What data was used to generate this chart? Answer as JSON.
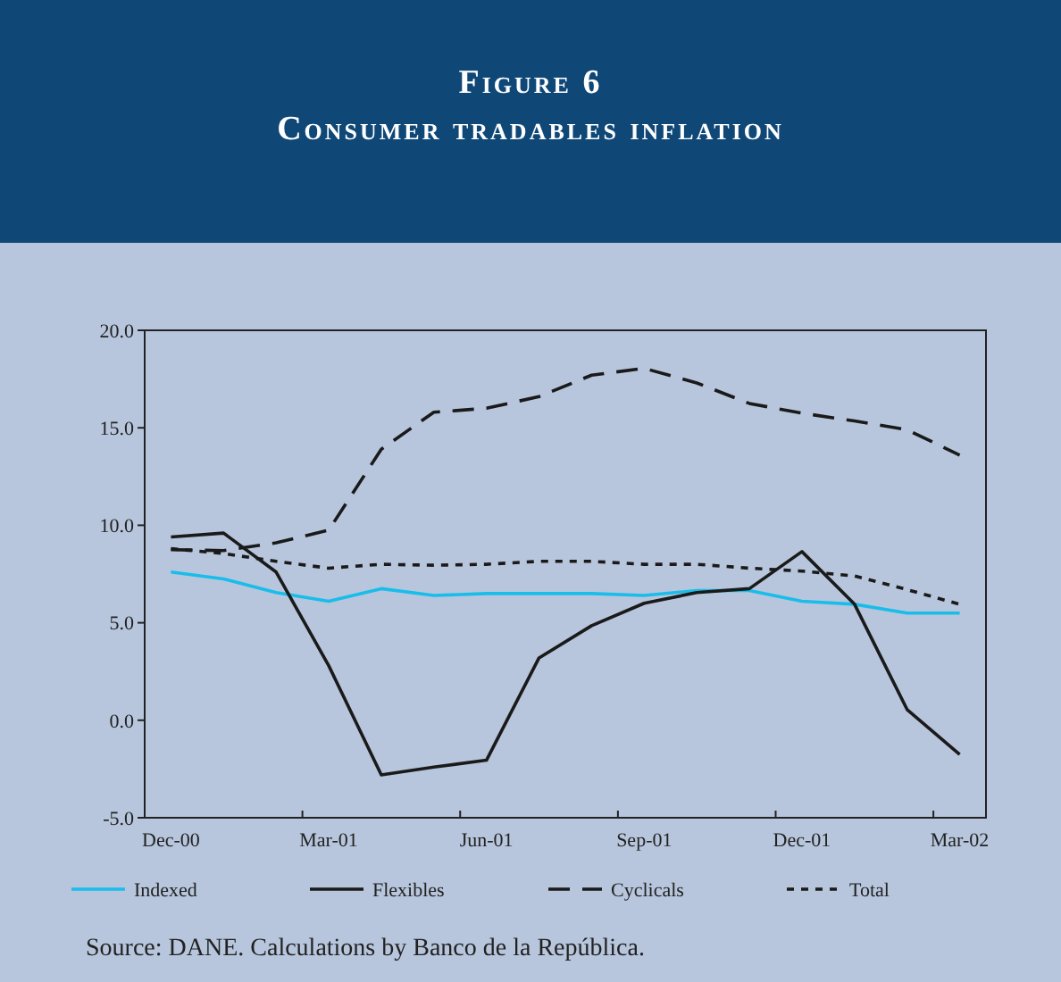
{
  "chart_data": {
    "type": "line",
    "title": "Figure 6",
    "subtitle": "Consumer tradables inflation",
    "categories": [
      "Dec-00",
      null,
      null,
      "Mar-01",
      null,
      null,
      "Jun-01",
      null,
      null,
      "Sep-01",
      null,
      null,
      "Dec-01",
      null,
      null,
      "Mar-02"
    ],
    "series": [
      {
        "name": "Indexed",
        "color": "#19bdea",
        "line_style": "solid",
        "values": [
          7.6,
          7.25,
          6.55,
          6.1,
          6.75,
          6.4,
          6.5,
          6.5,
          6.5,
          6.4,
          6.65,
          6.65,
          6.1,
          5.95,
          5.5,
          5.5
        ]
      },
      {
        "name": "Flexibles",
        "color": "#1a1a1a",
        "line_style": "solid",
        "values": [
          9.4,
          9.6,
          7.6,
          2.8,
          -2.8,
          -2.4,
          -2.05,
          3.2,
          4.85,
          6.0,
          6.55,
          6.75,
          8.65,
          5.95,
          0.55,
          -1.75
        ]
      },
      {
        "name": "Cyclicals",
        "color": "#1a1a1a",
        "line_style": "dashed",
        "values": [
          8.75,
          8.7,
          9.1,
          9.75,
          13.9,
          15.8,
          16.0,
          16.6,
          17.7,
          18.05,
          17.3,
          16.25,
          15.75,
          15.35,
          14.9,
          13.6
        ]
      },
      {
        "name": "Total",
        "color": "#1a1a1a",
        "line_style": "dotted",
        "values": [
          8.8,
          8.55,
          8.15,
          7.8,
          8.0,
          7.95,
          8.0,
          8.15,
          8.15,
          8.0,
          8.0,
          7.8,
          7.65,
          7.4,
          6.7,
          5.95
        ]
      }
    ],
    "ylim": [
      -5,
      20
    ],
    "yticks": [
      {
        "value": -5,
        "label": "-5.0"
      },
      {
        "value": 0,
        "label": "0.0"
      },
      {
        "value": 5,
        "label": "5.0"
      },
      {
        "value": 10,
        "label": "10.0"
      },
      {
        "value": 15,
        "label": "15.0"
      },
      {
        "value": 20,
        "label": "20.0"
      }
    ],
    "legend": "bottom",
    "marker": "none",
    "annotations": [
      "Source: DANE. Calculations by Banco de la República."
    ]
  }
}
